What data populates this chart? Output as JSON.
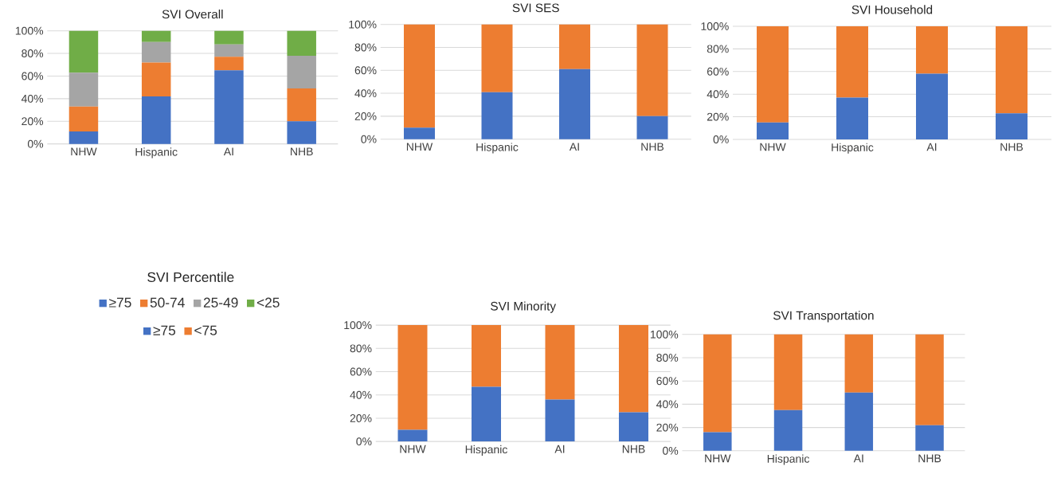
{
  "chart_data": [
    {
      "type": "bar",
      "title": "SVI Overall",
      "stacked": true,
      "categories": [
        "NHW",
        "Hispanic",
        "AI",
        "NHB"
      ],
      "ylim": [
        0,
        100
      ],
      "yticks": [
        {
          "value": 0,
          "label": "0%"
        },
        {
          "value": 20,
          "label": "20%"
        },
        {
          "value": 40,
          "label": "40%"
        },
        {
          "value": 60,
          "label": "60%"
        },
        {
          "value": 80,
          "label": "80%"
        },
        {
          "value": 100,
          "label": "100%"
        }
      ],
      "grid": "y",
      "legend": "bottom",
      "legend_title": "SVI Percentile",
      "series": [
        {
          "name": "≥75",
          "color": "#4472c4",
          "values": [
            11,
            42,
            65,
            20
          ]
        },
        {
          "name": "50-74",
          "color": "#ed7d31",
          "values": [
            22,
            30,
            12,
            29
          ]
        },
        {
          "name": "25-49",
          "color": "#a5a5a5",
          "values": [
            30,
            18,
            11,
            29
          ]
        },
        {
          "name": "<25",
          "color": "#70ad47",
          "values": [
            37,
            10,
            12,
            22
          ]
        }
      ]
    },
    {
      "type": "bar",
      "title": "SVI SES",
      "stacked": true,
      "categories": [
        "NHW",
        "Hispanic",
        "AI",
        "NHB"
      ],
      "ylim": [
        0,
        100
      ],
      "yticks": [
        {
          "value": 0,
          "label": "0%"
        },
        {
          "value": 20,
          "label": "20%"
        },
        {
          "value": 40,
          "label": "40%"
        },
        {
          "value": 60,
          "label": "60%"
        },
        {
          "value": 80,
          "label": "80%"
        },
        {
          "value": 100,
          "label": "100%"
        }
      ],
      "grid": "y",
      "legend": "bottom",
      "series": [
        {
          "name": "≥75",
          "color": "#4472c4",
          "values": [
            10,
            41,
            61,
            20
          ]
        },
        {
          "name": "<75",
          "color": "#ed7d31",
          "values": [
            90,
            59,
            39,
            80
          ]
        }
      ]
    },
    {
      "type": "bar",
      "title": "SVI Household",
      "stacked": true,
      "categories": [
        "NHW",
        "Hispanic",
        "AI",
        "NHB"
      ],
      "ylim": [
        0,
        100
      ],
      "yticks": [
        {
          "value": 0,
          "label": "0%"
        },
        {
          "value": 20,
          "label": "20%"
        },
        {
          "value": 40,
          "label": "40%"
        },
        {
          "value": 60,
          "label": "60%"
        },
        {
          "value": 80,
          "label": "80%"
        },
        {
          "value": 100,
          "label": "100%"
        }
      ],
      "grid": "y",
      "series": [
        {
          "color": "#4472c4",
          "values": [
            15,
            37,
            58,
            23
          ]
        },
        {
          "color": "#ed7d31",
          "values": [
            85,
            63,
            42,
            77
          ]
        }
      ]
    },
    {
      "type": "bar",
      "title": "SVI Minority",
      "stacked": true,
      "categories": [
        "NHW",
        "Hispanic",
        "AI",
        "NHB"
      ],
      "ylim": [
        0,
        100
      ],
      "yticks": [
        {
          "value": 0,
          "label": "0%"
        },
        {
          "value": 20,
          "label": "20%"
        },
        {
          "value": 40,
          "label": "40%"
        },
        {
          "value": 60,
          "label": "60%"
        },
        {
          "value": 80,
          "label": "80%"
        },
        {
          "value": 100,
          "label": "100%"
        }
      ],
      "grid": "y",
      "series": [
        {
          "color": "#4472c4",
          "values": [
            10,
            47,
            36,
            25
          ]
        },
        {
          "color": "#ed7d31",
          "values": [
            90,
            53,
            64,
            75
          ]
        }
      ]
    },
    {
      "type": "bar",
      "title": "SVI Transportation",
      "stacked": true,
      "categories": [
        "NHW",
        "Hispanic",
        "AI",
        "NHB"
      ],
      "ylim": [
        0,
        100
      ],
      "yticks": [
        {
          "value": 0,
          "label": "0%"
        },
        {
          "value": 20,
          "label": "20%"
        },
        {
          "value": 40,
          "label": "40%"
        },
        {
          "value": 60,
          "label": "60%"
        },
        {
          "value": 80,
          "label": "80%"
        },
        {
          "value": 100,
          "label": "100%"
        }
      ],
      "grid": "y",
      "series": [
        {
          "color": "#4472c4",
          "values": [
            16,
            35,
            50,
            22
          ]
        },
        {
          "color": "#ed7d31",
          "values": [
            84,
            65,
            50,
            78
          ]
        }
      ]
    }
  ]
}
